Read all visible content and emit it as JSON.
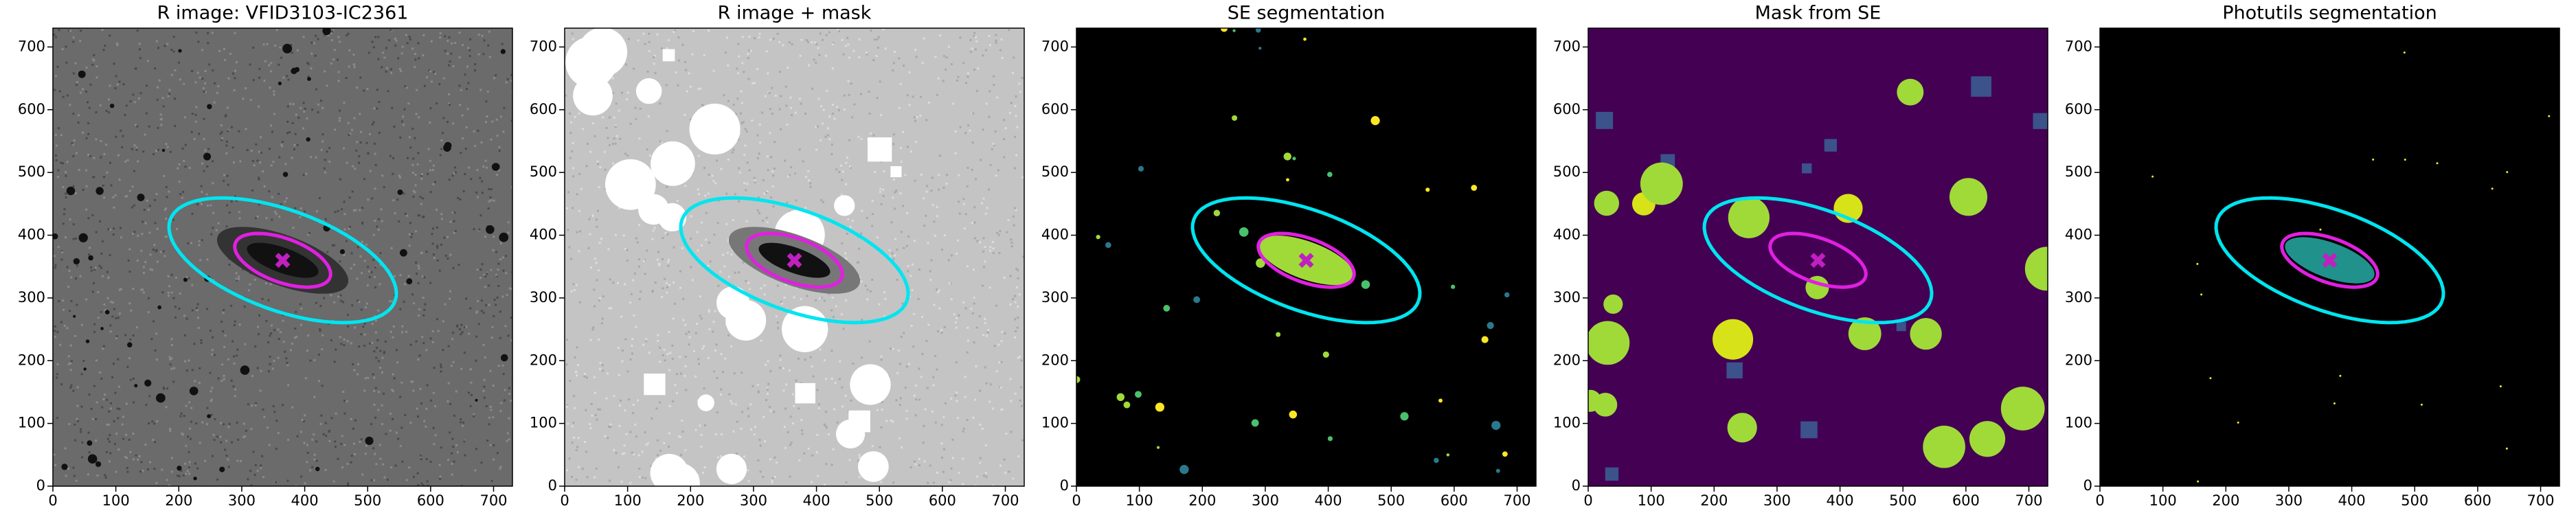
{
  "chart_data": [
    {
      "type": "image",
      "title": "R image: VFID3103-IC2361",
      "xlim": [
        0,
        730
      ],
      "ylim": [
        0,
        730
      ],
      "xticks": [
        0,
        100,
        200,
        300,
        400,
        500,
        600,
        700
      ],
      "yticks": [
        0,
        100,
        200,
        300,
        400,
        500,
        600,
        700
      ],
      "ellipses": [
        {
          "color": "#00e5f0",
          "center": [
            365,
            360
          ],
          "a": 190,
          "b": 80,
          "angle": -20
        },
        {
          "color": "#e020e0",
          "center": [
            365,
            360
          ],
          "a": 80,
          "b": 35,
          "angle": -20
        }
      ],
      "marker": {
        "color": "#c020c0",
        "xy": [
          365,
          360
        ]
      }
    },
    {
      "type": "image",
      "title": "R image + mask",
      "xlim": [
        0,
        730
      ],
      "ylim": [
        0,
        730
      ],
      "xticks": [
        0,
        100,
        200,
        300,
        400,
        500,
        600,
        700
      ],
      "yticks": [
        0,
        100,
        200,
        300,
        400,
        500,
        600,
        700
      ],
      "ellipses": [
        {
          "color": "#00e5f0",
          "center": [
            365,
            360
          ],
          "a": 190,
          "b": 80,
          "angle": -20
        },
        {
          "color": "#e020e0",
          "center": [
            365,
            360
          ],
          "a": 80,
          "b": 35,
          "angle": -20
        }
      ],
      "marker": {
        "color": "#c020c0",
        "xy": [
          365,
          360
        ]
      }
    },
    {
      "type": "image",
      "title": "SE segmentation",
      "xlim": [
        0,
        730
      ],
      "ylim": [
        0,
        730
      ],
      "xticks": [
        0,
        100,
        200,
        300,
        400,
        500,
        600,
        700
      ],
      "yticks": [
        0,
        100,
        200,
        300,
        400,
        500,
        600,
        700
      ],
      "ellipses": [
        {
          "color": "#00e5f0",
          "center": [
            365,
            360
          ],
          "a": 190,
          "b": 80,
          "angle": -20
        },
        {
          "color": "#e020e0",
          "center": [
            365,
            360
          ],
          "a": 80,
          "b": 35,
          "angle": -20
        }
      ],
      "marker": {
        "color": "#c020c0",
        "xy": [
          365,
          360
        ]
      }
    },
    {
      "type": "image",
      "title": "Mask from SE",
      "xlim": [
        0,
        730
      ],
      "ylim": [
        0,
        730
      ],
      "xticks": [
        0,
        100,
        200,
        300,
        400,
        500,
        600,
        700
      ],
      "yticks": [
        0,
        100,
        200,
        300,
        400,
        500,
        600,
        700
      ],
      "ellipses": [
        {
          "color": "#00e5f0",
          "center": [
            365,
            360
          ],
          "a": 190,
          "b": 80,
          "angle": -20
        },
        {
          "color": "#e020e0",
          "center": [
            365,
            360
          ],
          "a": 80,
          "b": 35,
          "angle": -20
        }
      ],
      "marker": {
        "color": "#c020c0",
        "xy": [
          365,
          360
        ]
      }
    },
    {
      "type": "image",
      "title": "Photutils segmentation",
      "xlim": [
        0,
        730
      ],
      "ylim": [
        0,
        730
      ],
      "xticks": [
        0,
        100,
        200,
        300,
        400,
        500,
        600,
        700
      ],
      "yticks": [
        0,
        100,
        200,
        300,
        400,
        500,
        600,
        700
      ],
      "ellipses": [
        {
          "color": "#00e5f0",
          "center": [
            365,
            360
          ],
          "a": 190,
          "b": 80,
          "angle": -20
        },
        {
          "color": "#e020e0",
          "center": [
            365,
            360
          ],
          "a": 80,
          "b": 35,
          "angle": -20
        }
      ],
      "marker": {
        "color": "#c020c0",
        "xy": [
          365,
          360
        ]
      }
    }
  ]
}
